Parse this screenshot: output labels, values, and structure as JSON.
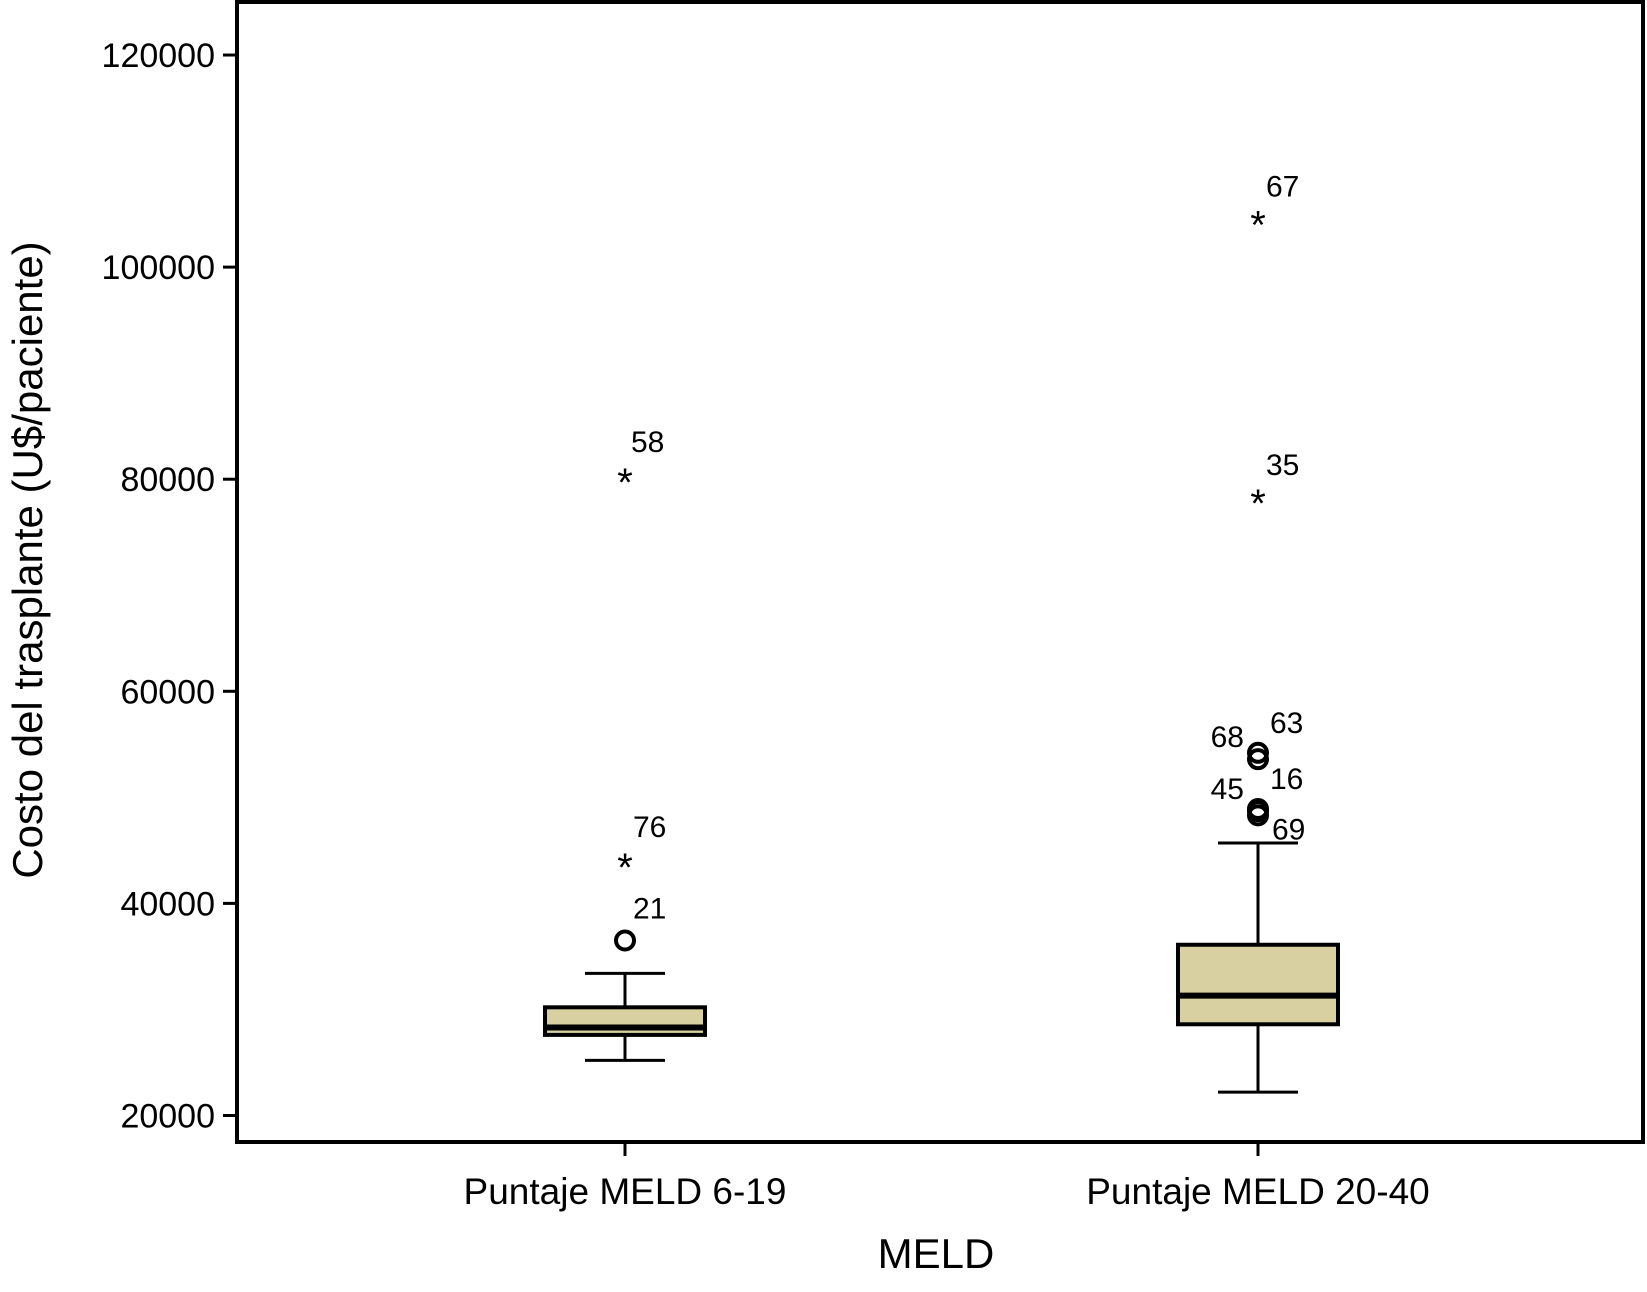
{
  "chart_data": {
    "type": "box",
    "xlabel": "MELD",
    "ylabel": "Costo del trasplante (U$/paciente)",
    "ylim": [
      17500,
      125000
    ],
    "yticks": [
      20000,
      40000,
      60000,
      80000,
      100000,
      120000
    ],
    "categories": [
      "Puntaje MELD 6-19",
      "Puntaje MELD 20-40"
    ],
    "box_fill": "#d8d0a0",
    "groups": [
      {
        "category": "Puntaje MELD 6-19",
        "whisker_low": 25200,
        "q1": 27600,
        "median": 28300,
        "q3": 30200,
        "whisker_high": 33400,
        "outliers": [
          {
            "value": 36500,
            "marker": "circle",
            "label": "21"
          },
          {
            "value": 44000,
            "marker": "star",
            "label": "76"
          },
          {
            "value": 80300,
            "marker": "star",
            "label": "58"
          }
        ]
      },
      {
        "category": "Puntaje MELD 20-40",
        "whisker_low": 22200,
        "q1": 28600,
        "median": 31300,
        "q3": 36100,
        "whisker_high": 45700,
        "outliers": [
          {
            "value": 48300,
            "marker": "circle",
            "label": "69"
          },
          {
            "value": 48700,
            "marker": "circle",
            "label": "45"
          },
          {
            "value": 48900,
            "marker": "circle",
            "label": "16"
          },
          {
            "value": 53600,
            "marker": "circle",
            "label": "68"
          },
          {
            "value": 54200,
            "marker": "circle",
            "label": "63"
          },
          {
            "value": 78300,
            "marker": "star",
            "label": "35"
          },
          {
            "value": 104600,
            "marker": "star",
            "label": "67"
          }
        ]
      }
    ]
  }
}
